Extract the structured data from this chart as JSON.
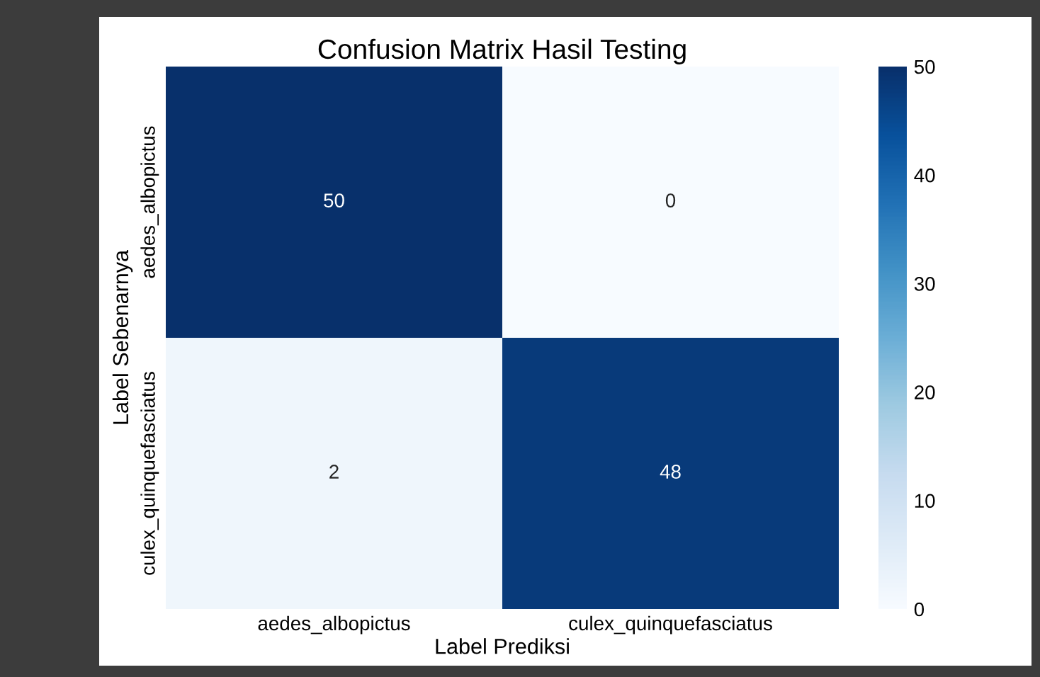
{
  "chart_data": {
    "type": "heatmap",
    "title": "Confusion Matrix Hasil Testing",
    "xlabel": "Label Prediksi",
    "ylabel": "Label Sebenarnya",
    "categories": [
      "aedes_albopictus",
      "culex_quinquefasciatus"
    ],
    "y_categories": [
      "aedes_albopictus",
      "culex_quinquefasciatus"
    ],
    "cells": [
      [
        50,
        0
      ],
      [
        2,
        48
      ]
    ],
    "clim": [
      0,
      50
    ],
    "cticks": [
      0,
      10,
      20,
      30,
      40,
      50
    ],
    "data_labels": true
  }
}
